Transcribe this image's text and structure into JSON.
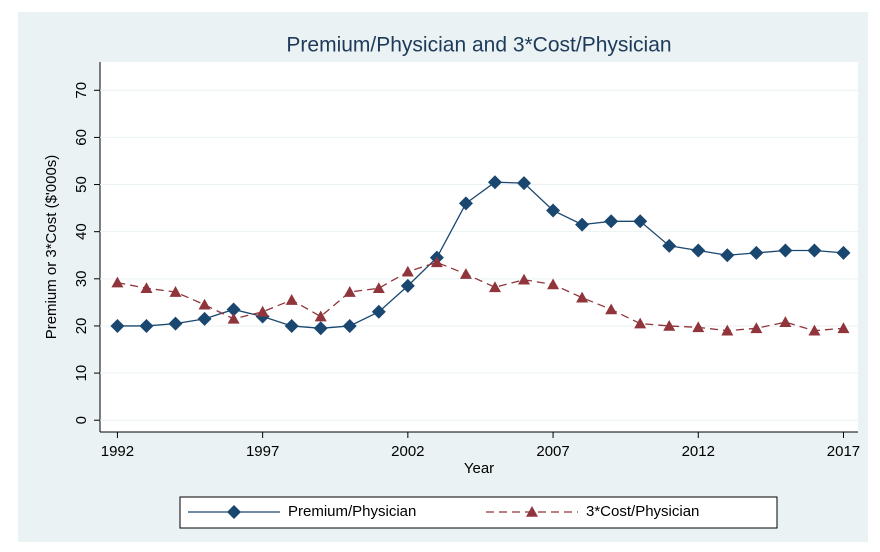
{
  "chart_data": {
    "type": "line",
    "title": "Premium/Physician and 3*Cost/Physician",
    "x_label": "Year",
    "y_label": "Premium or 3*Cost ($'000s)",
    "x": [
      1992,
      1993,
      1994,
      1995,
      1996,
      1997,
      1998,
      1999,
      2000,
      2001,
      2002,
      2003,
      2004,
      2005,
      2006,
      2007,
      2008,
      2009,
      2010,
      2011,
      2012,
      2013,
      2014,
      2015,
      2016,
      2017
    ],
    "series": [
      {
        "name": "Premium/Physician",
        "color": "#1a476f",
        "marker": "diamond",
        "dash": "solid",
        "values": [
          20,
          20,
          20.5,
          21.5,
          23.5,
          22,
          20,
          19.5,
          20,
          23,
          28.5,
          34.5,
          46,
          50.5,
          50.3,
          44.5,
          41.5,
          42.2,
          42.2,
          37,
          36,
          35,
          35.5,
          36,
          36,
          35.5
        ]
      },
      {
        "name": "3*Cost/Physician",
        "color": "#90353b",
        "marker": "triangle",
        "dash": "dashed",
        "values": [
          29.2,
          28,
          27.2,
          24.5,
          21.5,
          23,
          25.5,
          22,
          27.2,
          28,
          31.5,
          33.5,
          31,
          28.2,
          29.8,
          28.8,
          26,
          23.5,
          20.5,
          20,
          19.7,
          19,
          19.5,
          20.8,
          19,
          19.5
        ]
      }
    ],
    "xlim": [
      1991.4,
      2017.5
    ],
    "xticks": [
      1992,
      1997,
      2002,
      2007,
      2012,
      2017
    ],
    "ylim": [
      -2.5,
      76
    ],
    "yticks": [
      0,
      10,
      20,
      30,
      40,
      50,
      60,
      70
    ],
    "grid": true,
    "legend": "bottom"
  }
}
